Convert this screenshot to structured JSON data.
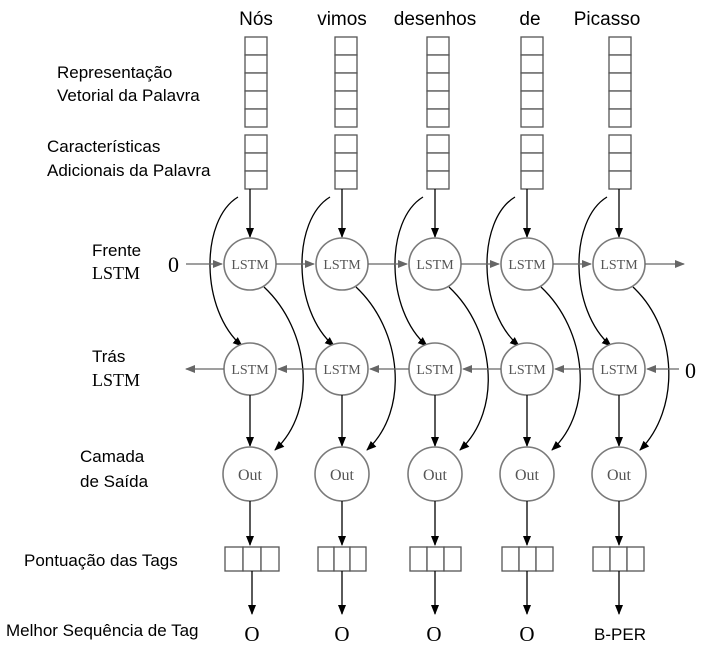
{
  "words": [
    "Nós",
    "vimos",
    "desenhos",
    "de",
    "Picasso"
  ],
  "tags": [
    "O",
    "O",
    "O",
    "O",
    "B-PER"
  ],
  "labels": {
    "word_vector": [
      "Representação",
      "Vetorial da Palavra"
    ],
    "extra_features": [
      "Características",
      "Adicionais  da Palavra"
    ],
    "forward_lstm": [
      "Frente",
      "LSTM"
    ],
    "backward_lstm": [
      "Trás",
      "LSTM"
    ],
    "output_layer": [
      "Camada",
      "de Saída"
    ],
    "tag_scores": "Pontuação das Tags",
    "best_sequence": "Melhor Sequência de Tag"
  },
  "nodes": {
    "lstm_label": "LSTM",
    "out_label": "Out",
    "initial_forward_state": "0",
    "initial_backward_state": "0"
  }
}
